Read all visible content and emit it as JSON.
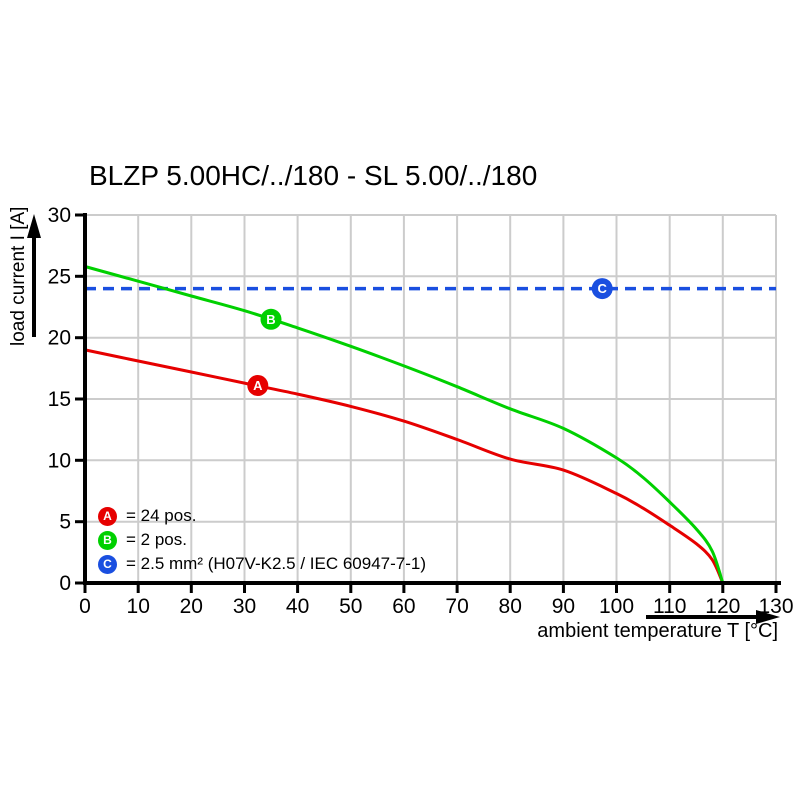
{
  "chart": {
    "title": "BLZP 5.00HC/../180 - SL 5.00/../180",
    "xlabel": "ambient temperature T [°C]",
    "ylabel": "load current I [A]"
  },
  "chart_data": {
    "type": "line",
    "title": "BLZP 5.00HC/../180 - SL 5.00/../180",
    "xlabel": "ambient temperature T [°C]",
    "ylabel": "load current I [A]",
    "xlim": [
      0,
      130
    ],
    "ylim": [
      0,
      30
    ],
    "xticks": [
      0,
      10,
      20,
      30,
      40,
      50,
      60,
      70,
      80,
      90,
      100,
      110,
      120,
      130
    ],
    "yticks": [
      0,
      5,
      10,
      15,
      20,
      25,
      30
    ],
    "grid": true,
    "legend_position": "bottom-left-inside",
    "colors": {
      "grid": "#cccccc",
      "axis": "#000000"
    },
    "series": [
      {
        "name": "A = 24 pos.",
        "color": "#e60000",
        "style": "solid",
        "points": [
          [
            0,
            19.0
          ],
          [
            10,
            18.1
          ],
          [
            20,
            17.2
          ],
          [
            30,
            16.3
          ],
          [
            40,
            15.4
          ],
          [
            50,
            14.4
          ],
          [
            60,
            13.2
          ],
          [
            70,
            11.7
          ],
          [
            80,
            10.1
          ],
          [
            90,
            9.2
          ],
          [
            100,
            7.3
          ],
          [
            105,
            6.1
          ],
          [
            110,
            4.7
          ],
          [
            115,
            3.2
          ],
          [
            118,
            1.9
          ],
          [
            120,
            0
          ]
        ]
      },
      {
        "name": "B = 2 pos.",
        "color": "#00d000",
        "style": "solid",
        "points": [
          [
            0,
            25.8
          ],
          [
            10,
            24.6
          ],
          [
            20,
            23.4
          ],
          [
            30,
            22.2
          ],
          [
            40,
            20.8
          ],
          [
            50,
            19.3
          ],
          [
            60,
            17.7
          ],
          [
            70,
            16.0
          ],
          [
            80,
            14.2
          ],
          [
            90,
            12.6
          ],
          [
            100,
            10.2
          ],
          [
            105,
            8.6
          ],
          [
            110,
            6.6
          ],
          [
            115,
            4.4
          ],
          [
            118,
            2.6
          ],
          [
            120,
            0
          ]
        ]
      },
      {
        "name": "C = 2.5 mm² (H07V-K2.5 / IEC 60947-7-1)",
        "color": "#1a4fe0",
        "style": "dashed",
        "points": [
          [
            0,
            24
          ],
          [
            130,
            24
          ]
        ]
      }
    ],
    "markers": [
      {
        "key": "A",
        "x": 32.5,
        "y": 16.1,
        "color": "#e60000"
      },
      {
        "key": "B",
        "x": 35.0,
        "y": 21.5,
        "color": "#00d000"
      },
      {
        "key": "C",
        "x": 97.3,
        "y": 24.0,
        "color": "#1a4fe0"
      }
    ]
  },
  "legend": {
    "items": [
      {
        "key": "A",
        "color": "#e60000",
        "label": "= 24 pos."
      },
      {
        "key": "B",
        "color": "#00d000",
        "label": "= 2 pos."
      },
      {
        "key": "C",
        "color": "#1a4fe0",
        "label": "= 2.5 mm² (H07V-K2.5 / IEC 60947-7-1)"
      }
    ]
  }
}
